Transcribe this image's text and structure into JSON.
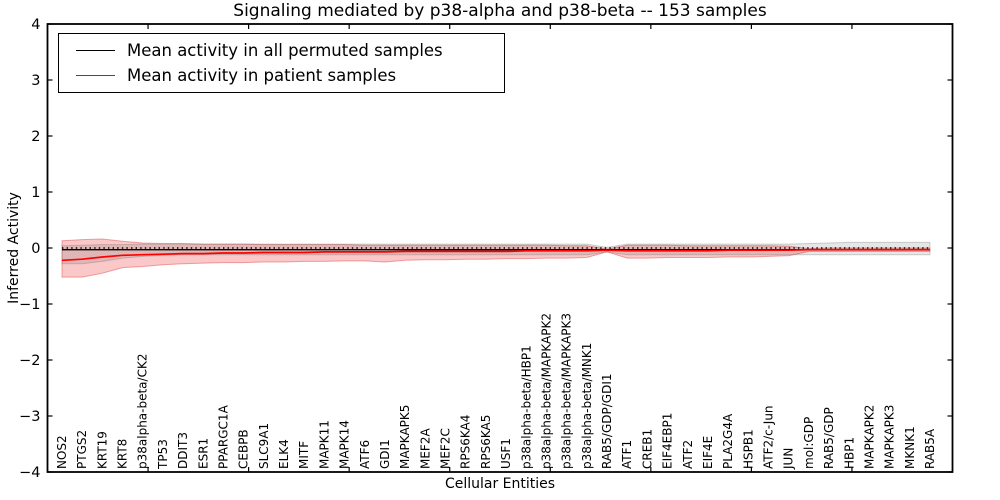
{
  "figure": {
    "title": "Signaling mediated by p38-alpha and p38-beta -- 153 samples",
    "xlabel": "Cellular Entities",
    "ylabel": "Inferred Activity"
  },
  "legend": {
    "entries": [
      {
        "label": "Mean activity in all permuted samples",
        "color": "#000000"
      },
      {
        "label": "Mean activity in patient samples",
        "color": "#ff0000"
      }
    ]
  },
  "chart_data": {
    "type": "line",
    "title": "Signaling mediated by p38-alpha and p38-beta -- 153 samples",
    "xlabel": "Cellular Entities",
    "ylabel": "Inferred Activity",
    "ylim": [
      -4,
      4
    ],
    "yticks": [
      4,
      3,
      2,
      1,
      0,
      -1,
      -2,
      -3,
      -4
    ],
    "xlim": [
      0,
      45
    ],
    "xticks_major_every": 5,
    "grid": false,
    "legend_position": "upper left",
    "zero_line": 0,
    "categories": [
      "NOS2",
      "PTGS2",
      "KRT19",
      "KRT8",
      "p38alpha-beta/CK2",
      "TP53",
      "DDIT3",
      "ESR1",
      "PPARGC1A",
      "CEBPB",
      "SLC9A1",
      "ELK4",
      "MITF",
      "MAPK11",
      "MAPK14",
      "ATF6",
      "GDI1",
      "MAPKAPK5",
      "MEF2A",
      "MEF2C",
      "RPS6KA4",
      "RPS6KA5",
      "USF1",
      "p38alpha-beta/HBP1",
      "p38alpha-beta/MAPKAPK2",
      "p38alpha-beta/MAPKAPK3",
      "p38alpha-beta/MNK1",
      "RAB5/GDP/GDI1",
      "ATF1",
      "CREB1",
      "EIF4EBP1",
      "ATF2",
      "EIF4E",
      "PLA2G4A",
      "HSPB1",
      "ATF2/c-Jun",
      "JUN",
      "mol:GDP",
      "RAB5/GDP",
      "HBP1",
      "MAPKAPK2",
      "MAPKAPK3",
      "MKNK1",
      "RAB5A"
    ],
    "series": [
      {
        "name": "Mean activity in all permuted samples",
        "color": "#000000",
        "values": [
          -0.03,
          -0.03,
          -0.03,
          -0.03,
          -0.03,
          -0.03,
          -0.03,
          -0.03,
          -0.03,
          -0.03,
          -0.03,
          -0.03,
          -0.03,
          -0.03,
          -0.03,
          -0.03,
          -0.03,
          -0.03,
          -0.03,
          -0.03,
          -0.03,
          -0.03,
          -0.03,
          -0.03,
          -0.03,
          -0.03,
          -0.03,
          -0.03,
          -0.03,
          -0.03,
          -0.03,
          -0.03,
          -0.03,
          -0.03,
          -0.03,
          -0.03,
          -0.03,
          -0.03,
          -0.03,
          -0.03,
          -0.03,
          -0.03,
          -0.03,
          -0.03
        ]
      },
      {
        "name": "Mean activity in patient samples",
        "color": "#ff0000",
        "values": [
          -0.22,
          -0.2,
          -0.16,
          -0.13,
          -0.12,
          -0.11,
          -0.1,
          -0.1,
          -0.09,
          -0.09,
          -0.08,
          -0.08,
          -0.08,
          -0.07,
          -0.07,
          -0.07,
          -0.07,
          -0.06,
          -0.06,
          -0.06,
          -0.06,
          -0.06,
          -0.06,
          -0.05,
          -0.05,
          -0.05,
          -0.05,
          -0.04,
          -0.05,
          -0.05,
          -0.05,
          -0.05,
          -0.05,
          -0.04,
          -0.04,
          -0.04,
          -0.04,
          -0.03,
          -0.03,
          -0.03,
          -0.03,
          -0.03,
          -0.03,
          -0.03
        ]
      }
    ],
    "bands": [
      {
        "name": "permuted-samples-range",
        "color": "gray",
        "upper": [
          0.04,
          0.05,
          0.06,
          0.06,
          0.07,
          0.07,
          0.07,
          0.07,
          0.07,
          0.07,
          0.07,
          0.07,
          0.07,
          0.07,
          0.07,
          0.07,
          0.07,
          0.07,
          0.07,
          0.07,
          0.07,
          0.07,
          0.07,
          0.07,
          0.07,
          0.07,
          0.07,
          0.01,
          0.07,
          0.07,
          0.07,
          0.07,
          0.07,
          0.07,
          0.07,
          0.07,
          0.07,
          0.08,
          0.09,
          0.1,
          0.1,
          0.1,
          0.1,
          0.1
        ],
        "lower": [
          -0.28,
          -0.28,
          -0.24,
          -0.18,
          -0.15,
          -0.13,
          -0.12,
          -0.12,
          -0.12,
          -0.12,
          -0.12,
          -0.12,
          -0.12,
          -0.12,
          -0.12,
          -0.12,
          -0.12,
          -0.12,
          -0.12,
          -0.12,
          -0.12,
          -0.12,
          -0.12,
          -0.12,
          -0.12,
          -0.12,
          -0.12,
          -0.07,
          -0.12,
          -0.12,
          -0.12,
          -0.12,
          -0.12,
          -0.12,
          -0.12,
          -0.12,
          -0.12,
          -0.12,
          -0.12,
          -0.12,
          -0.12,
          -0.12,
          -0.12,
          -0.12
        ]
      },
      {
        "name": "patient-samples-range",
        "color": "red",
        "upper": [
          0.13,
          0.15,
          0.16,
          0.12,
          0.09,
          0.08,
          0.08,
          0.07,
          0.07,
          0.07,
          0.06,
          0.06,
          0.06,
          0.06,
          0.06,
          0.05,
          0.05,
          0.05,
          0.05,
          0.05,
          0.05,
          0.05,
          0.05,
          0.05,
          0.05,
          0.04,
          0.04,
          -0.02,
          0.05,
          0.05,
          0.05,
          0.04,
          0.04,
          0.04,
          0.04,
          0.04,
          0.03,
          -0.01,
          0.0,
          0.0,
          0.0,
          0.0,
          0.0,
          0.0
        ],
        "lower": [
          -0.52,
          -0.52,
          -0.45,
          -0.35,
          -0.33,
          -0.3,
          -0.28,
          -0.27,
          -0.26,
          -0.26,
          -0.25,
          -0.25,
          -0.24,
          -0.24,
          -0.23,
          -0.23,
          -0.25,
          -0.22,
          -0.21,
          -0.21,
          -0.2,
          -0.2,
          -0.19,
          -0.19,
          -0.18,
          -0.18,
          -0.17,
          -0.07,
          -0.18,
          -0.18,
          -0.17,
          -0.17,
          -0.17,
          -0.16,
          -0.16,
          -0.15,
          -0.14,
          -0.06,
          -0.06,
          -0.06,
          -0.06,
          -0.06,
          -0.06,
          -0.06
        ]
      }
    ]
  }
}
